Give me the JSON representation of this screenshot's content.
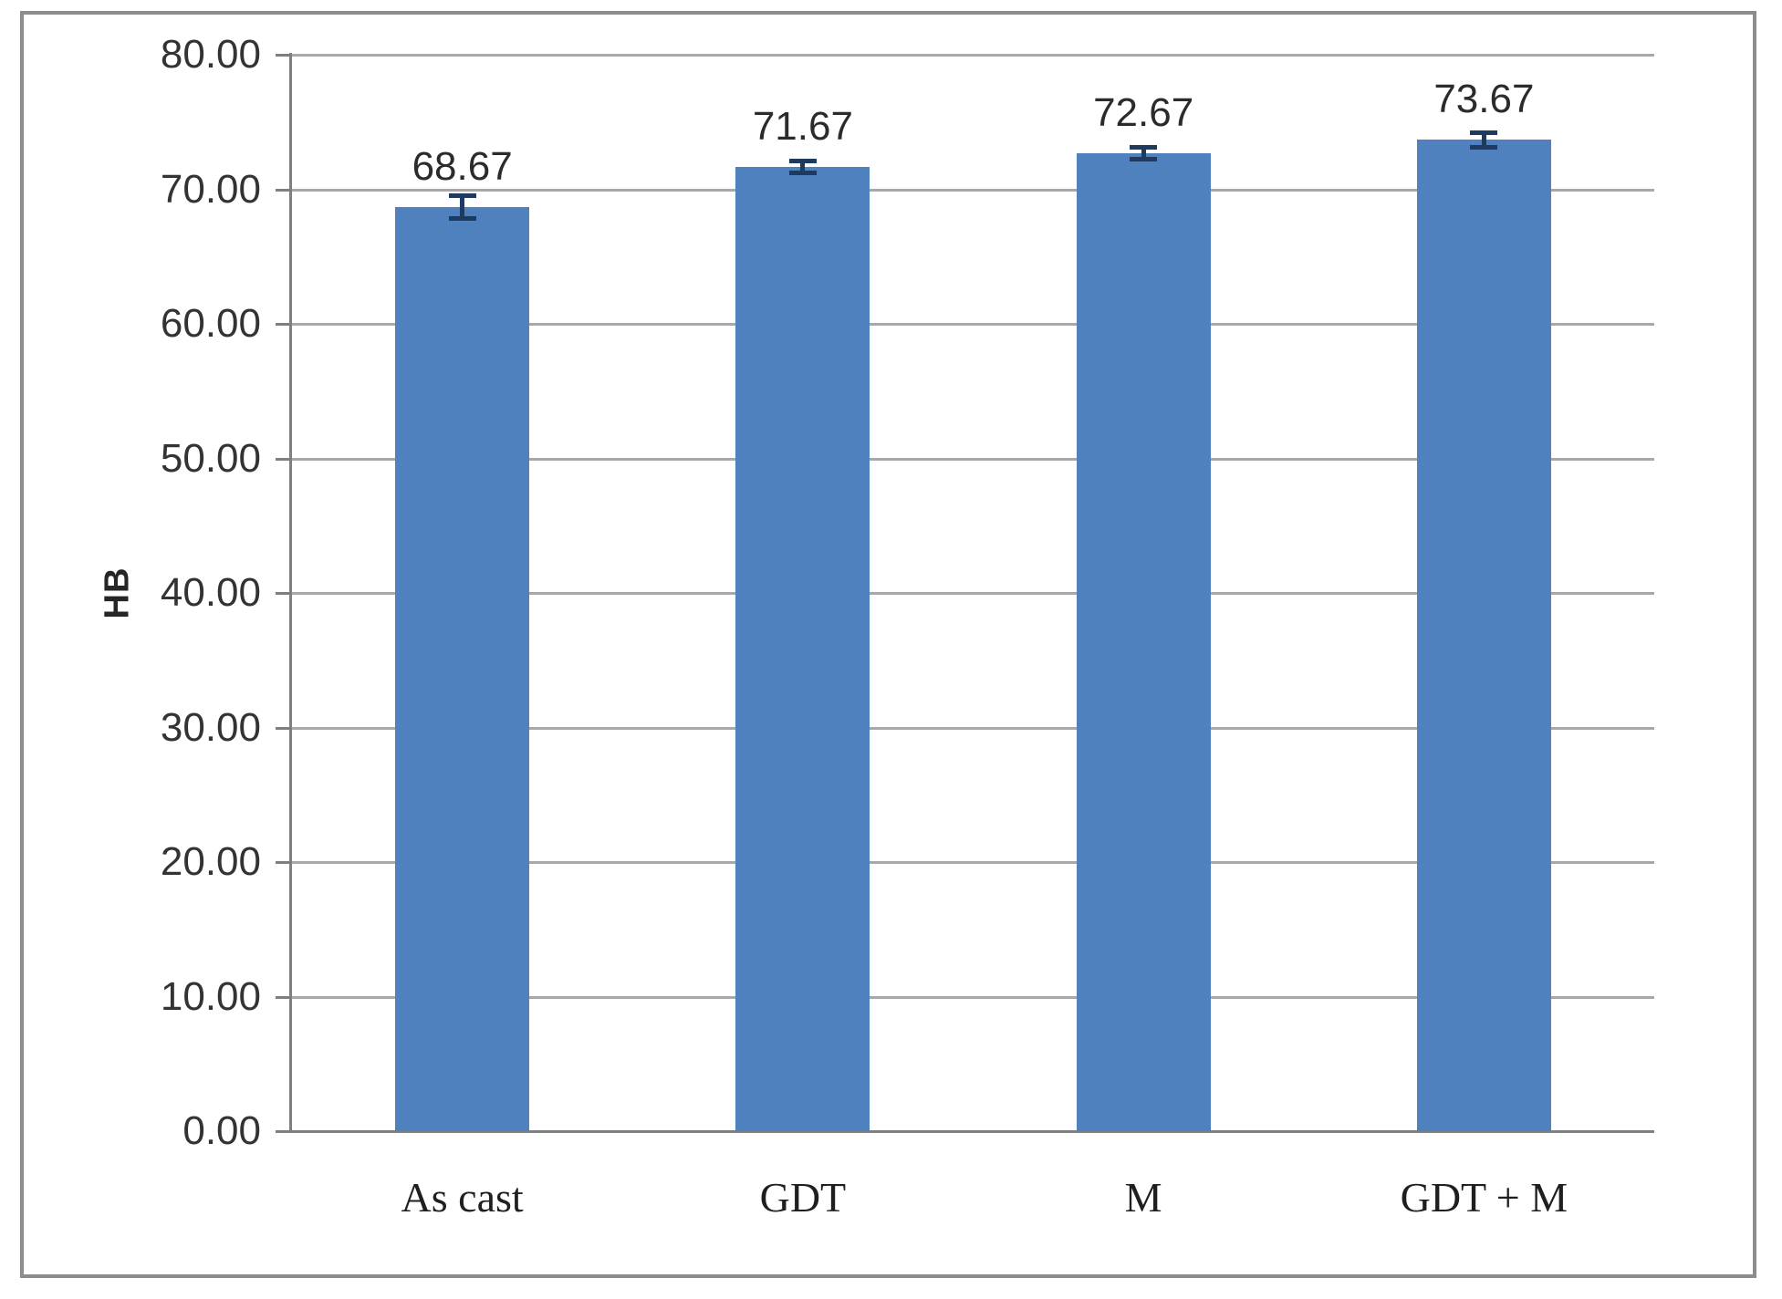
{
  "chart_data": {
    "type": "bar",
    "title": "",
    "xlabel": "",
    "ylabel": "HB",
    "categories": [
      "As cast",
      "GDT",
      "M",
      "GDT + M"
    ],
    "values": [
      68.67,
      71.67,
      72.67,
      73.67
    ],
    "data_labels": [
      "68.67",
      "71.67",
      "72.67",
      "73.67"
    ],
    "errors": [
      1.0,
      0.6,
      0.6,
      0.7
    ],
    "ylim": [
      0,
      80
    ],
    "ytick_step": 10,
    "ytick_labels": [
      "0.00",
      "10.00",
      "20.00",
      "30.00",
      "40.00",
      "50.00",
      "60.00",
      "70.00",
      "80.00"
    ],
    "grid": true,
    "legend": "none",
    "bar_color": "#4e81bd",
    "error_bar_color": "#1f3a5f",
    "gridline_color": "#a8a8a8",
    "axis_color": "#7f7f7f",
    "frame_color": "#8c8c8c",
    "text_color": "#333333"
  }
}
